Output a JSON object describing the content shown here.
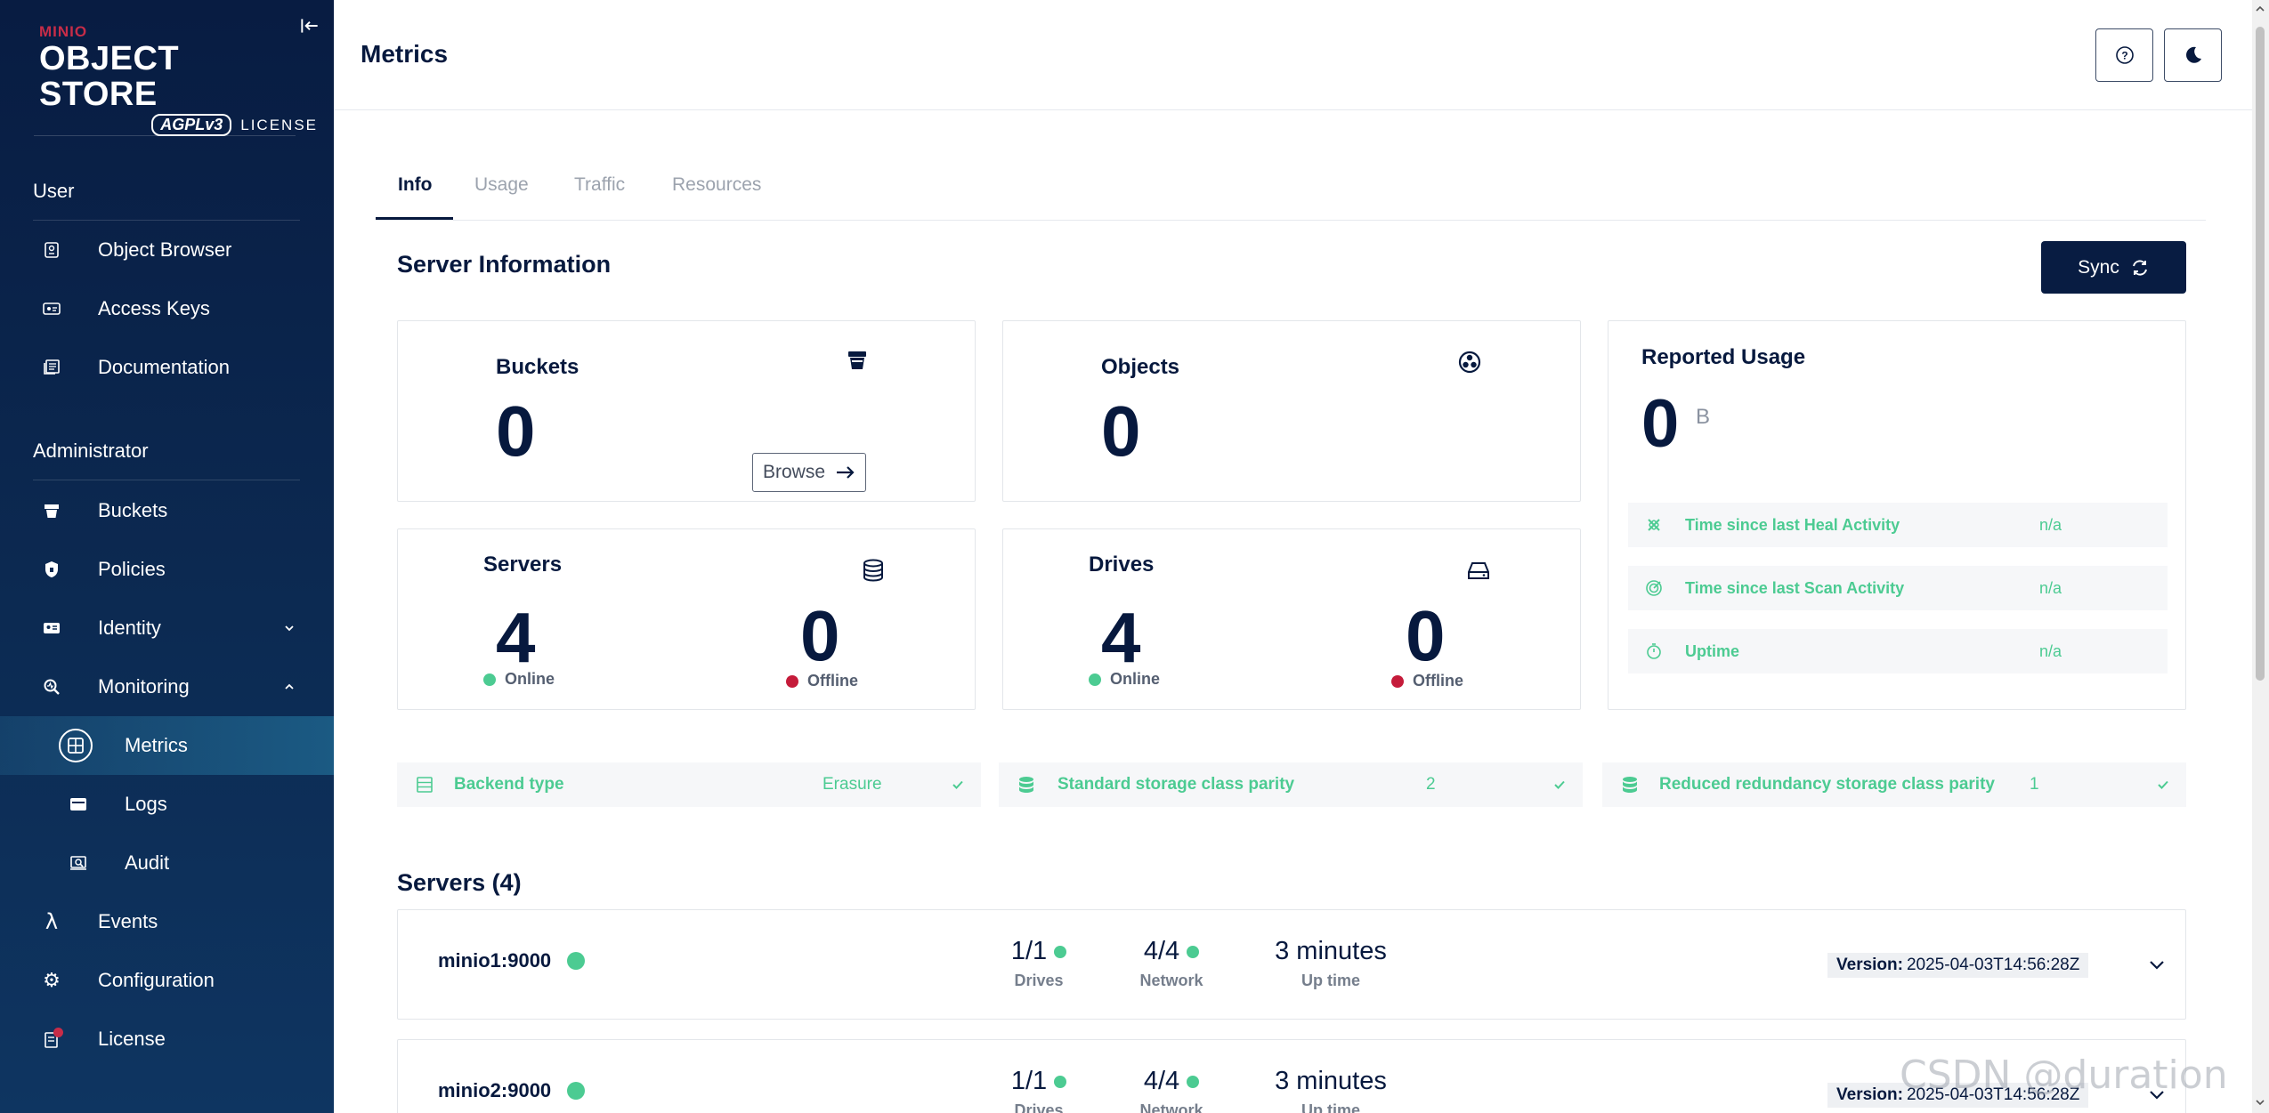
{
  "sidebar": {
    "logo": {
      "brand": "MINIO",
      "product": "OBJECT STORE",
      "badge": "AGPLv3",
      "license": "LICENSE"
    },
    "sections": [
      {
        "title": "User"
      },
      {
        "title": "Administrator"
      }
    ],
    "items": [
      {
        "label": "Object Browser",
        "icon": "object-browser-icon"
      },
      {
        "label": "Access Keys",
        "icon": "access-keys-icon"
      },
      {
        "label": "Documentation",
        "icon": "documentation-icon"
      },
      {
        "label": "Buckets",
        "icon": "bucket-icon"
      },
      {
        "label": "Policies",
        "icon": "shield-icon"
      },
      {
        "label": "Identity",
        "icon": "id-card-icon"
      },
      {
        "label": "Monitoring",
        "icon": "monitoring-icon"
      },
      {
        "label": "Metrics",
        "icon": "metrics-icon"
      },
      {
        "label": "Logs",
        "icon": "logs-icon"
      },
      {
        "label": "Audit",
        "icon": "audit-icon"
      },
      {
        "label": "Events",
        "icon": "lambda-icon"
      },
      {
        "label": "Configuration",
        "icon": "gear-icon"
      },
      {
        "label": "License",
        "icon": "license-icon"
      }
    ]
  },
  "header": {
    "title": "Metrics"
  },
  "tabs": [
    {
      "label": "Info"
    },
    {
      "label": "Usage"
    },
    {
      "label": "Traffic"
    },
    {
      "label": "Resources"
    }
  ],
  "server_info": {
    "title": "Server Information",
    "sync_label": "Sync",
    "buckets": {
      "title": "Buckets",
      "value": "0",
      "browse_label": "Browse"
    },
    "objects": {
      "title": "Objects",
      "value": "0"
    },
    "servers": {
      "title": "Servers",
      "online": "4",
      "offline": "0",
      "online_label": "Online",
      "offline_label": "Offline"
    },
    "drives": {
      "title": "Drives",
      "online": "4",
      "offline": "0",
      "online_label": "Online",
      "offline_label": "Offline"
    },
    "reported_usage": {
      "title": "Reported Usage",
      "value": "0",
      "unit": "B",
      "rows": [
        {
          "label": "Time since last Heal Activity",
          "value": "n/a"
        },
        {
          "label": "Time since last Scan Activity",
          "value": "n/a"
        },
        {
          "label": "Uptime",
          "value": "n/a"
        }
      ]
    },
    "info_rows": [
      {
        "label": "Backend type",
        "value": "Erasure"
      },
      {
        "label": "Standard storage class parity",
        "value": "2"
      },
      {
        "label": "Reduced redundancy storage class parity",
        "value": "1"
      }
    ]
  },
  "servers": {
    "title": "Servers (4)",
    "list": [
      {
        "name": "minio1:9000",
        "drives": "1/1",
        "drives_label": "Drives",
        "network": "4/4",
        "network_label": "Network",
        "uptime": "3 minutes",
        "uptime_label": "Up time",
        "version_label": "Version:",
        "version": "2025-04-03T14:56:28Z"
      },
      {
        "name": "minio2:9000",
        "drives": "1/1",
        "drives_label": "Drives",
        "network": "4/4",
        "network_label": "Network",
        "uptime": "3 minutes",
        "uptime_label": "Up time",
        "version_label": "Version:",
        "version": "2025-04-03T14:56:28Z"
      }
    ]
  },
  "watermark": "CSDN @duration ~",
  "colors": {
    "sidebar": "#081c42",
    "accent_green": "#4ccb92",
    "offline_red": "#c51b3a",
    "primary_dark": "#07193e"
  }
}
